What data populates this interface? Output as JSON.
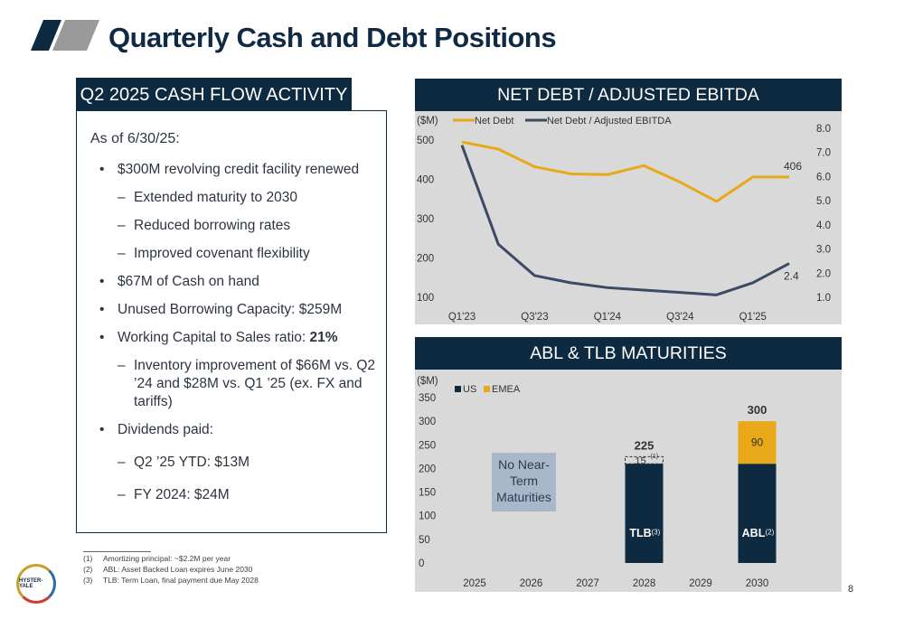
{
  "page": {
    "title": "Quarterly Cash and Debt Positions",
    "page_number": "8"
  },
  "colors": {
    "navy": "#0d2a40",
    "gold": "#e8a818",
    "slate": "#3d4a63",
    "gray_bg": "#d9d9d9"
  },
  "left_panel": {
    "header": "Q2 2025 CASH FLOW ACTIVITY",
    "as_of": "As of 6/30/25:",
    "b1": "$300M revolving credit facility renewed",
    "b1_s1": "Extended maturity to 2030",
    "b1_s2": "Reduced borrowing rates",
    "b1_s3": "Improved covenant flexibility",
    "b2": "$67M of Cash on hand",
    "b3": "Unused Borrowing Capacity: $259M",
    "b4_prefix": "Working Capital to Sales ratio: ",
    "b4_value": "21%",
    "b4_s1": "Inventory improvement of $66M vs. Q2 ’24 and $28M vs. Q1 ’25 (ex. FX and tariffs)",
    "b5": "Dividends paid:",
    "b5_s1": "Q2 ’25 YTD: $13M",
    "b5_s2": "FY 2024: $24M"
  },
  "footnotes": [
    {
      "num": "(1)",
      "text": "Amortizing principal: ~$2.2M per year"
    },
    {
      "num": "(2)",
      "text": "ABL: Asset Backed Loan expires June 2030"
    },
    {
      "num": "(3)",
      "text": "TLB: Term Loan, final payment due May 2028"
    }
  ],
  "logo_text": "HYSTER-YALE",
  "chart_data": [
    {
      "type": "line",
      "title": "NET DEBT / ADJUSTED EBITDA",
      "ylabel_left": "($M)",
      "ylim_left": [
        100,
        500
      ],
      "yticks_left": [
        "100",
        "200",
        "300",
        "400",
        "500"
      ],
      "ylim_right": [
        1.0,
        8.0
      ],
      "yticks_right": [
        "1.0",
        "2.0",
        "3.0",
        "4.0",
        "5.0",
        "6.0",
        "7.0",
        "8.0"
      ],
      "x_tick_labels": [
        "Q1'23",
        "Q3'23",
        "Q1'24",
        "Q3'24",
        "Q1'25"
      ],
      "x": [
        "Q1'23",
        "Q2'23",
        "Q3'23",
        "Q4'23",
        "Q1'24",
        "Q2'24",
        "Q3'24",
        "Q4'24",
        "Q1'25",
        "Q2'25"
      ],
      "legend_position": "top-left",
      "series": [
        {
          "name": "Net Debt",
          "axis": "left",
          "color": "#e8a818",
          "values": [
            495,
            477,
            432,
            414,
            412,
            435,
            393,
            344,
            406,
            406
          ],
          "end_label": "406"
        },
        {
          "name": "Net Debt / Adjusted EBITDA",
          "axis": "right",
          "color": "#3d4a63",
          "values": [
            7.3,
            3.2,
            1.9,
            1.6,
            1.4,
            1.3,
            1.2,
            1.1,
            1.6,
            2.4
          ],
          "end_label": "2.4"
        }
      ]
    },
    {
      "type": "bar",
      "stacked": true,
      "title": "ABL & TLB MATURITIES",
      "ylabel": "($M)",
      "ylim": [
        0,
        350
      ],
      "yticks": [
        "0",
        "50",
        "100",
        "150",
        "200",
        "250",
        "300",
        "350"
      ],
      "categories": [
        "2025",
        "2026",
        "2027",
        "2028",
        "2029",
        "2030"
      ],
      "legend_position": "top-left",
      "series": [
        {
          "name": "US",
          "color": "#0d2a40",
          "values": [
            0,
            0,
            0,
            210,
            0,
            210
          ]
        },
        {
          "name": "EMEA",
          "color": "#e8a818",
          "values": [
            0,
            0,
            0,
            0,
            0,
            90
          ]
        },
        {
          "name": "",
          "color": "none",
          "values": [
            0,
            0,
            0,
            15,
            0,
            0
          ],
          "dashed": true
        }
      ],
      "totals": [
        "",
        "",
        "",
        "225",
        "",
        "300"
      ],
      "segment_labels": {
        "emea_2030": "90",
        "dashed_2028": "15"
      },
      "bar_labels": {
        "2028": "TLB",
        "2028_note": "(3)",
        "2030": "ABL",
        "2030_note": "(2)"
      },
      "dashed_note": "(1)",
      "annotation": "No Near-Term Maturities"
    }
  ]
}
